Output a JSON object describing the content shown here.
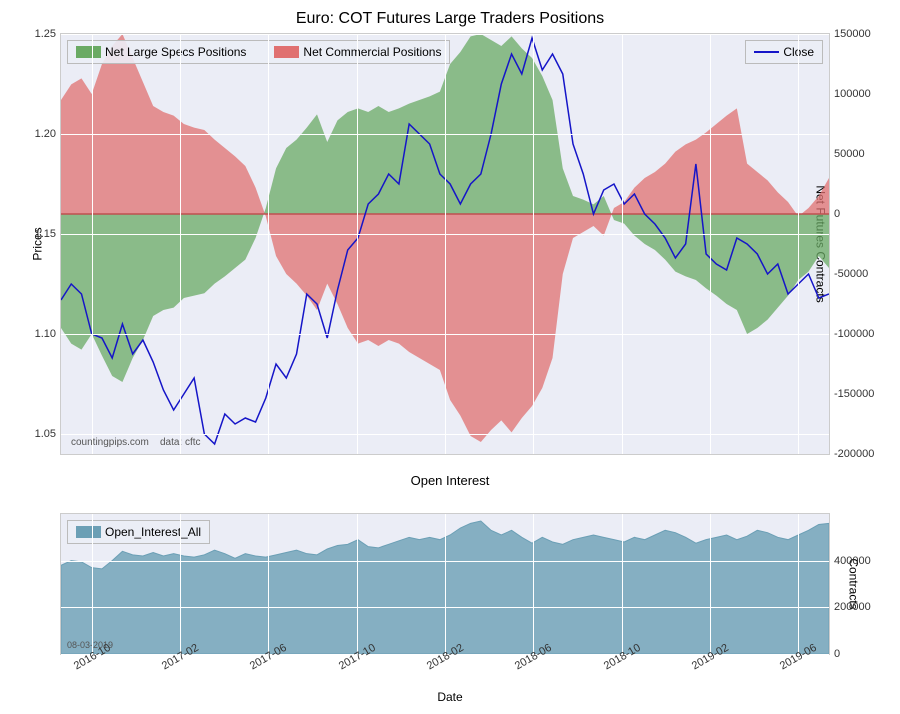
{
  "main_chart": {
    "title": "Euro: COT Futures Large Traders Positions",
    "type": "area_line_dual_axis",
    "background_color": "#ebedf6",
    "grid_color": "#ffffff",
    "y_left": {
      "label": "Prices",
      "min": 1.04,
      "max": 1.25,
      "ticks": [
        1.05,
        1.1,
        1.15,
        1.2,
        1.25
      ],
      "label_fontsize": 12
    },
    "y_right": {
      "label": "Net Futures Contracts",
      "min": -200000,
      "max": 150000,
      "ticks": [
        -200000,
        -150000,
        -100000,
        -50000,
        0,
        50000,
        100000,
        150000
      ],
      "label_fontsize": 12
    },
    "x": {
      "ticks": [
        "2016-10",
        "2017-02",
        "2017-06",
        "2017-10",
        "2018-02",
        "2018-06",
        "2018-10",
        "2019-02",
        "2019-06"
      ]
    },
    "series": {
      "net_large_specs": {
        "label": "Net Large Specs Positions",
        "color": "#6aaa64",
        "opacity": 0.75,
        "baseline": 0,
        "data": [
          -95000,
          -108000,
          -113000,
          -100000,
          -118000,
          -135000,
          -140000,
          -120000,
          -105000,
          -85000,
          -80000,
          -78000,
          -70000,
          -68000,
          -66000,
          -58000,
          -52000,
          -45000,
          -38000,
          -20000,
          5000,
          38000,
          55000,
          62000,
          72000,
          83000,
          60000,
          78000,
          85000,
          88000,
          85000,
          90000,
          85000,
          88000,
          92000,
          95000,
          98000,
          102000,
          125000,
          135000,
          148000,
          150000,
          145000,
          140000,
          148000,
          138000,
          130000,
          115000,
          95000,
          38000,
          15000,
          12000,
          8000,
          15000,
          -5000,
          -8000,
          -18000,
          -25000,
          -30000,
          -38000,
          -48000,
          -52000,
          -55000,
          -62000,
          -68000,
          -75000,
          -80000,
          -100000,
          -95000,
          -88000,
          -78000,
          -68000,
          -55000,
          -48000,
          -35000,
          -45000
        ]
      },
      "net_commercial": {
        "label": "Net Commercial Positions",
        "color": "#e07070",
        "opacity": 0.75,
        "baseline": 0,
        "data": [
          95000,
          108000,
          113000,
          100000,
          125000,
          140000,
          150000,
          130000,
          110000,
          90000,
          85000,
          82000,
          75000,
          72000,
          70000,
          62000,
          55000,
          48000,
          40000,
          22000,
          -2000,
          -35000,
          -50000,
          -58000,
          -68000,
          -80000,
          -58000,
          -75000,
          -95000,
          -108000,
          -105000,
          -110000,
          -105000,
          -108000,
          -115000,
          -120000,
          -125000,
          -130000,
          -155000,
          -168000,
          -185000,
          -190000,
          -180000,
          -172000,
          -182000,
          -170000,
          -160000,
          -145000,
          -120000,
          -50000,
          -20000,
          -15000,
          -10000,
          -18000,
          5000,
          10000,
          22000,
          30000,
          35000,
          42000,
          52000,
          58000,
          62000,
          68000,
          75000,
          82000,
          88000,
          42000,
          35000,
          28000,
          18000,
          10000,
          -2000,
          5000,
          15000,
          30000
        ]
      },
      "close": {
        "label": "Close",
        "color": "#1515c8",
        "line_width": 1.5,
        "data": [
          1.117,
          1.125,
          1.12,
          1.1,
          1.098,
          1.088,
          1.105,
          1.09,
          1.097,
          1.086,
          1.072,
          1.062,
          1.07,
          1.078,
          1.05,
          1.045,
          1.06,
          1.055,
          1.058,
          1.056,
          1.068,
          1.085,
          1.078,
          1.09,
          1.12,
          1.115,
          1.098,
          1.122,
          1.142,
          1.148,
          1.165,
          1.17,
          1.18,
          1.175,
          1.205,
          1.2,
          1.195,
          1.18,
          1.175,
          1.165,
          1.175,
          1.18,
          1.2,
          1.225,
          1.24,
          1.23,
          1.248,
          1.232,
          1.24,
          1.23,
          1.195,
          1.18,
          1.16,
          1.172,
          1.175,
          1.165,
          1.17,
          1.16,
          1.155,
          1.148,
          1.138,
          1.145,
          1.185,
          1.14,
          1.135,
          1.132,
          1.148,
          1.145,
          1.14,
          1.13,
          1.135,
          1.12,
          1.125,
          1.13,
          1.118,
          1.12
        ]
      }
    },
    "legends": [
      {
        "items": [
          {
            "label": "Net Large Specs Positions",
            "type": "swatch"
          },
          {
            "label": "Net Commercial Positions",
            "type": "swatch"
          }
        ],
        "pos": "top-left"
      },
      {
        "items": [
          {
            "label": "Close",
            "type": "line"
          }
        ],
        "pos": "top-right"
      }
    ],
    "watermark_left": "countingpips.com",
    "watermark_right": "data: cftc"
  },
  "sub_chart": {
    "title": "Open Interest",
    "type": "area",
    "background_color": "#ebedf6",
    "y_right": {
      "label": "Contracts",
      "min": 0,
      "max": 600000,
      "ticks": [
        0,
        200000,
        400000
      ],
      "label_fontsize": 12
    },
    "series": {
      "open_interest": {
        "label": "Open_Interest_All",
        "color": "#6b9fb5",
        "opacity": 0.8,
        "data": [
          380000,
          400000,
          395000,
          370000,
          365000,
          400000,
          440000,
          425000,
          420000,
          435000,
          420000,
          430000,
          420000,
          415000,
          425000,
          445000,
          430000,
          410000,
          430000,
          420000,
          415000,
          425000,
          435000,
          445000,
          430000,
          425000,
          450000,
          465000,
          470000,
          490000,
          460000,
          455000,
          470000,
          485000,
          500000,
          490000,
          500000,
          490000,
          510000,
          540000,
          560000,
          570000,
          530000,
          510000,
          530000,
          500000,
          475000,
          500000,
          480000,
          470000,
          490000,
          500000,
          510000,
          500000,
          490000,
          480000,
          500000,
          490000,
          510000,
          530000,
          520000,
          500000,
          475000,
          490000,
          500000,
          510000,
          490000,
          505000,
          530000,
          520000,
          500000,
          490000,
          510000,
          530000,
          555000,
          560000
        ]
      }
    },
    "legend_label": "Open_Interest_All",
    "date_stamp": "08-03-2019",
    "x_label": "Date"
  }
}
